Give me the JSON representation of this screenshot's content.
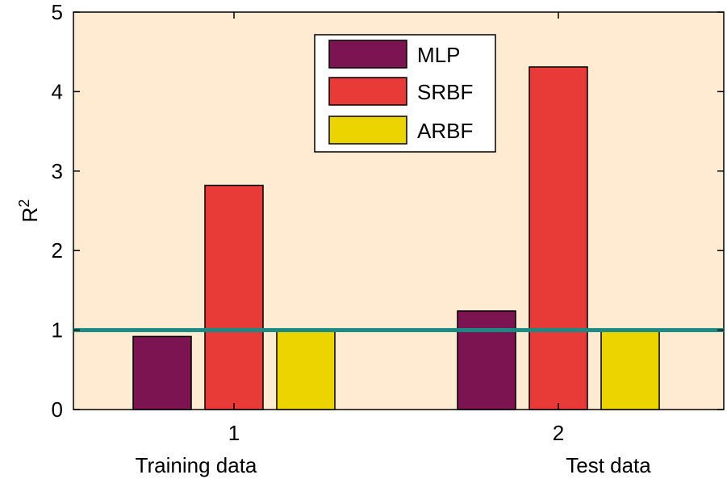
{
  "chart_data": {
    "type": "bar",
    "title": "",
    "xlabel": "",
    "ylabel": "R",
    "ylabel_superscript": "2",
    "categories": [
      "1",
      "2"
    ],
    "category_descriptions": [
      "Training data",
      "Test data"
    ],
    "series": [
      {
        "name": "MLP",
        "color": "#7b1450",
        "values": [
          0.92,
          1.24
        ]
      },
      {
        "name": "SRBF",
        "color": "#e83a36",
        "values": [
          2.82,
          4.31
        ]
      },
      {
        "name": "ARBF",
        "color": "#ecd400",
        "values": [
          1.0,
          1.0
        ]
      }
    ],
    "ylim": [
      0,
      5
    ],
    "yticks": [
      "0",
      "1",
      "2",
      "3",
      "4",
      "5"
    ],
    "reference_line": {
      "y": 1,
      "color": "#1a8a84"
    },
    "plot_background": "#feebd2",
    "legend_position": "top-center",
    "grid": false
  }
}
